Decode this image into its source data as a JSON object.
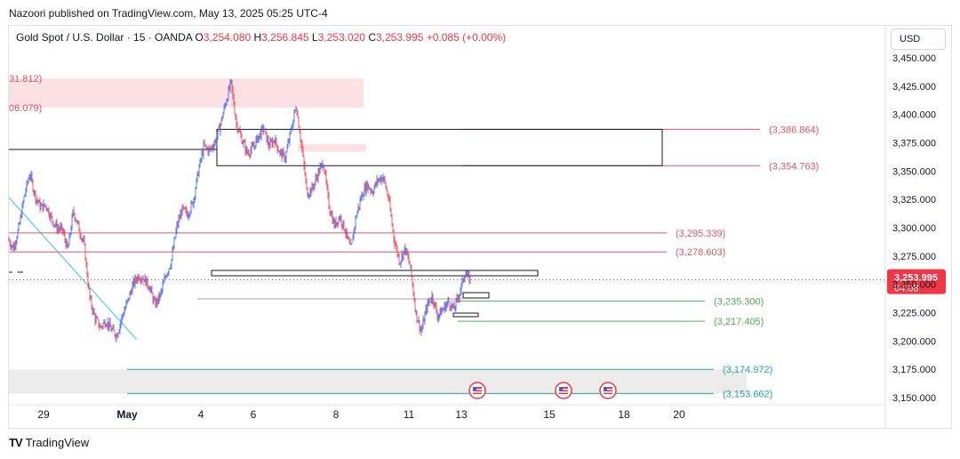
{
  "header": {
    "publisher_line": "Nazoori published on TradingView.com, May 13, 2025 05:25 UTC-4",
    "symbol": "Gold Spot / U.S. Dollar · 15 · OANDA",
    "open_label": "O",
    "open": "3,254.080",
    "high_label": "H",
    "high": "3,256.845",
    "low_label": "L",
    "low": "3,253.020",
    "close_label": "C",
    "close": "3,253.995",
    "change": "+0.085 (+0.00%)",
    "currency": "USD"
  },
  "footer": {
    "logo_text": "TradingView",
    "logo_mark": "TV"
  },
  "colors": {
    "up": "#2962ff",
    "down": "#f23645",
    "red_level": "#e05565",
    "green_level": "#4caf50",
    "teal_level": "#26a69a",
    "trendline": "#4dd0e1",
    "zone_red": "#fde0e4",
    "zone_grey": "#ebebeb",
    "price_badge": "#f23645"
  },
  "chart_data": {
    "type": "candlestick",
    "y_axis": {
      "ticks": [
        3450,
        3425,
        3400,
        3375,
        3350,
        3325,
        3300,
        3275,
        3250,
        3225,
        3200,
        3175,
        3150
      ],
      "tick_labels": [
        "3,450.000",
        "3,425.000",
        "3,400.000",
        "3,375.000",
        "3,350.000",
        "3,325.000",
        "3,300.000",
        "3,275.000",
        "3,250.000",
        "3,225.000",
        "3,200.000",
        "3,175.000",
        "3,150.000"
      ],
      "ylim": [
        3140.5,
        3462.5
      ]
    },
    "x_axis": {
      "tick_labels": [
        "29",
        "May",
        "4",
        "6",
        "8",
        "11",
        "13",
        "15",
        "18",
        "20"
      ],
      "tick_bold": [
        false,
        true,
        false,
        false,
        false,
        false,
        false,
        false,
        false,
        false
      ]
    },
    "current_price": {
      "value": 3253.995,
      "label": "3,253.995",
      "countdown": "04:08"
    },
    "levels": [
      {
        "price": 3386.864,
        "label": "(3,386.864)",
        "color": "red"
      },
      {
        "price": 3354.763,
        "label": "(3,354.763)",
        "color": "red"
      },
      {
        "price": 3295.339,
        "label": "(3,295.339)",
        "color": "red"
      },
      {
        "price": 3278.603,
        "label": "(3,278.603)",
        "color": "red"
      },
      {
        "price": 3235.3,
        "label": "(3,235.300)",
        "color": "green"
      },
      {
        "price": 3217.405,
        "label": "(3,217.405)",
        "color": "green"
      },
      {
        "price": 3174.972,
        "label": "(3,174.972)",
        "color": "teal"
      },
      {
        "price": 3153.662,
        "label": "(3,153.662)",
        "color": "teal"
      }
    ],
    "zone_labels": [
      {
        "price": 3431.812,
        "label": "31.812)"
      },
      {
        "price": 3406.079,
        "label": "06.079)"
      }
    ],
    "event_markers": 3,
    "path": [
      [
        0,
        3290
      ],
      [
        3,
        3282
      ],
      [
        6,
        3300
      ],
      [
        9,
        3328
      ],
      [
        12,
        3348
      ],
      [
        15,
        3328
      ],
      [
        18,
        3318
      ],
      [
        21,
        3320
      ],
      [
        24,
        3308
      ],
      [
        27,
        3300
      ],
      [
        30,
        3298
      ],
      [
        33,
        3280
      ],
      [
        36,
        3315
      ],
      [
        39,
        3300
      ],
      [
        42,
        3285
      ],
      [
        45,
        3238
      ],
      [
        48,
        3220
      ],
      [
        51,
        3212
      ],
      [
        54,
        3218
      ],
      [
        57,
        3210
      ],
      [
        60,
        3205
      ],
      [
        63,
        3222
      ],
      [
        66,
        3235
      ],
      [
        69,
        3250
      ],
      [
        72,
        3258
      ],
      [
        75,
        3255
      ],
      [
        78,
        3248
      ],
      [
        81,
        3232
      ],
      [
        84,
        3240
      ],
      [
        87,
        3258
      ],
      [
        90,
        3270
      ],
      [
        93,
        3300
      ],
      [
        96,
        3316
      ],
      [
        99,
        3312
      ],
      [
        102,
        3322
      ],
      [
        105,
        3350
      ],
      [
        108,
        3372
      ],
      [
        111,
        3368
      ],
      [
        114,
        3375
      ],
      [
        117,
        3390
      ],
      [
        120,
        3410
      ],
      [
        123,
        3428
      ],
      [
        126,
        3392
      ],
      [
        129,
        3378
      ],
      [
        132,
        3366
      ],
      [
        135,
        3370
      ],
      [
        138,
        3380
      ],
      [
        141,
        3388
      ],
      [
        144,
        3372
      ],
      [
        147,
        3378
      ],
      [
        150,
        3366
      ],
      [
        153,
        3362
      ],
      [
        156,
        3385
      ],
      [
        159,
        3408
      ],
      [
        162,
        3372
      ],
      [
        165,
        3330
      ],
      [
        168,
        3335
      ],
      [
        171,
        3348
      ],
      [
        174,
        3358
      ],
      [
        177,
        3320
      ],
      [
        180,
        3302
      ],
      [
        183,
        3310
      ],
      [
        186,
        3298
      ],
      [
        189,
        3280
      ],
      [
        192,
        3310
      ],
      [
        195,
        3328
      ],
      [
        198,
        3338
      ],
      [
        201,
        3332
      ],
      [
        204,
        3342
      ],
      [
        207,
        3345
      ],
      [
        210,
        3325
      ],
      [
        213,
        3290
      ],
      [
        216,
        3270
      ],
      [
        219,
        3282
      ],
      [
        222,
        3265
      ],
      [
        225,
        3225
      ],
      [
        228,
        3208
      ],
      [
        231,
        3230
      ],
      [
        234,
        3240
      ],
      [
        237,
        3222
      ],
      [
        240,
        3228
      ],
      [
        243,
        3235
      ],
      [
        246,
        3228
      ],
      [
        249,
        3242
      ],
      [
        252,
        3260
      ],
      [
        255,
        3254
      ]
    ]
  }
}
